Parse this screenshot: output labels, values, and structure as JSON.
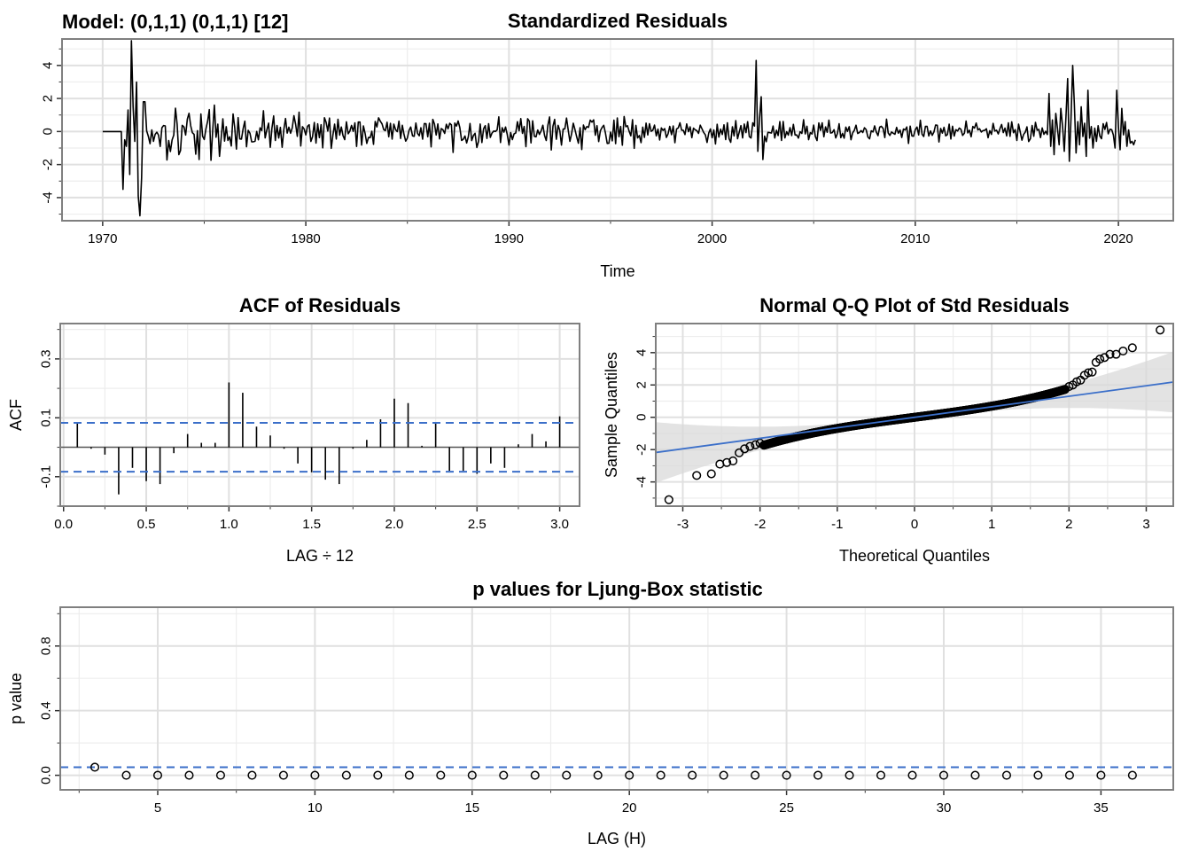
{
  "model_label": "Model: (0,1,1) (0,1,1) [12]",
  "chart_data": [
    {
      "id": "std-residuals",
      "type": "line",
      "title": "Standardized Residuals",
      "xlabel": "Time",
      "ylabel": "",
      "xlim": [
        1968,
        2022.7
      ],
      "ylim": [
        -5.4,
        5.6
      ],
      "xticks": [
        1970,
        1980,
        1990,
        2000,
        2010,
        2020
      ],
      "xtick_labels": [
        "1970",
        "1980",
        "1990",
        "2000",
        "2010",
        "2020"
      ],
      "yticks": [
        -4,
        -2,
        0,
        2,
        4
      ],
      "ytick_labels": [
        "-4",
        "-2",
        "0",
        "2",
        "4"
      ],
      "grid": true,
      "series": [
        {
          "color": "#000000",
          "segments": [
            {
              "start": 1970.0,
              "step": 0.0833333,
              "amp": 0.0,
              "seed": 1,
              "values": [
                0,
                0,
                0,
                0,
                0,
                0,
                0,
                0,
                0,
                0,
                0,
                0
              ]
            },
            {
              "start": 1971.0,
              "step": 0.0833333,
              "amp": 0.0,
              "seed": 2,
              "values": [
                -3.5,
                -0.5,
                -0.9,
                1.3,
                -2.6,
                5.5,
                1.5,
                -0.6,
                3.0,
                -3.9,
                -5.1,
                -2.8,
                1.8
              ]
            },
            {
              "start": 1972.0833,
              "step": 0.0833333,
              "amp": 1.6,
              "seed": 11,
              "values": [
                1.8
              ]
            },
            {
              "start": 1972.1667,
              "step": 0.0833333,
              "amp": 1.6,
              "seed": 17,
              "count": 44
            },
            {
              "start": 1975.8333,
              "step": 0.0833333,
              "amp": 1.1,
              "seed": 23,
              "count": 48
            },
            {
              "start": 1979.8333,
              "step": 0.0833333,
              "amp": 0.8,
              "seed": 29,
              "count": 200
            },
            {
              "start": 1996.5,
              "step": 0.0833333,
              "amp": 0.55,
              "seed": 31,
              "count": 68
            },
            {
              "start": 2002.1667,
              "step": 0.0833333,
              "amp": 0.0,
              "seed": 3,
              "values": [
                4.3,
                -1.2,
                0.8,
                2.1,
                -1.7
              ]
            },
            {
              "start": 2002.5833,
              "step": 0.0833333,
              "amp": 0.55,
              "seed": 37,
              "count": 168
            },
            {
              "start": 2016.5833,
              "step": 0.0833333,
              "amp": 0.0,
              "seed": 4,
              "values": [
                2.3,
                -0.9,
                0.7,
                -1.4,
                1.1,
                0.2,
                -0.8,
                1.4,
                0.3,
                -1.2,
                0.9,
                3.2,
                -1.8,
                0.8,
                4.0,
                1.6,
                -1.3,
                0.6,
                -0.8,
                1.5,
                -0.3,
                0.5,
                -1.5,
                2.5,
                -0.4,
                0.3,
                -1.0,
                0.2,
                -0.6
              ]
            },
            {
              "start": 2019.0,
              "step": 0.0833333,
              "amp": 0.5,
              "seed": 41,
              "count": 10
            },
            {
              "start": 2019.8333,
              "step": 0.0833333,
              "amp": 0.0,
              "seed": 5,
              "values": [
                -1.0,
                2.5,
                0.3,
                -1.1,
                1.4,
                -0.2,
                0.6,
                -0.9,
                0.1,
                -0.7,
                -0.6,
                -0.8,
                -0.5
              ]
            }
          ]
        }
      ]
    },
    {
      "id": "acf-residuals",
      "type": "bar",
      "title": "ACF of Residuals",
      "xlabel": "LAG ÷ 12",
      "ylabel": "ACF",
      "xlim": [
        -0.02,
        3.12
      ],
      "ylim": [
        -0.2,
        0.42
      ],
      "xticks": [
        0.0,
        0.5,
        1.0,
        1.5,
        2.0,
        2.5,
        3.0
      ],
      "xtick_labels": [
        "0.0",
        "0.5",
        "1.0",
        "1.5",
        "2.0",
        "2.5",
        "3.0"
      ],
      "yticks": [
        -0.1,
        0.1,
        0.3
      ],
      "ytick_labels": [
        "-0.1",
        "0.1",
        "0.3"
      ],
      "grid": true,
      "confidence_bounds": [
        0.083,
        -0.083
      ],
      "lags": [
        0.0833,
        0.1667,
        0.25,
        0.3333,
        0.4167,
        0.5,
        0.5833,
        0.6667,
        0.75,
        0.8333,
        0.9167,
        1.0,
        1.0833,
        1.1667,
        1.25,
        1.3333,
        1.4167,
        1.5,
        1.5833,
        1.6667,
        1.75,
        1.8333,
        1.9167,
        2.0,
        2.0833,
        2.1667,
        2.25,
        2.3333,
        2.4167,
        2.5,
        2.5833,
        2.6667,
        2.75,
        2.8333,
        2.9167,
        3.0
      ],
      "values": [
        0.08,
        -0.005,
        -0.025,
        -0.16,
        -0.07,
        -0.115,
        -0.125,
        -0.02,
        0.045,
        0.015,
        0.015,
        0.22,
        0.185,
        0.07,
        0.04,
        -0.005,
        -0.055,
        -0.085,
        -0.11,
        -0.125,
        -0.005,
        0.025,
        0.095,
        0.165,
        0.15,
        0.005,
        0.08,
        -0.08,
        -0.08,
        -0.09,
        -0.055,
        -0.07,
        0.01,
        0.045,
        0.02,
        0.105
      ]
    },
    {
      "id": "qq-plot",
      "type": "scatter",
      "title": "Normal Q-Q Plot of Std Residuals",
      "xlabel": "Theoretical Quantiles",
      "ylabel": "Sample Quantiles",
      "xlim": [
        -3.35,
        3.35
      ],
      "ylim": [
        -5.5,
        5.8
      ],
      "xticks": [
        -3,
        -2,
        -1,
        0,
        1,
        2,
        3
      ],
      "xtick_labels": [
        "-3",
        "-2",
        "-1",
        "0",
        "1",
        "2",
        "3"
      ],
      "yticks": [
        -4,
        -2,
        0,
        2,
        4
      ],
      "ytick_labels": [
        "-4",
        "-2",
        "0",
        "2",
        "4"
      ],
      "grid": true,
      "reference_line": {
        "intercept": 0.0,
        "slope": 0.65,
        "color": "#3b6fc9"
      },
      "band": {
        "base": 0.08,
        "growth": 0.16,
        "color": "#d9d9d9"
      },
      "bulk": {
        "n": 600,
        "x_range": [
          -1.95,
          1.95
        ],
        "y_at_x0": 0.0,
        "slope_center": 0.62,
        "cubic": 0.07
      },
      "tail_points": {
        "x": [
          -3.18,
          -2.82,
          -2.63,
          -2.52,
          -2.43,
          -2.35,
          -2.27,
          -2.2,
          -2.13,
          -2.06,
          -2.0,
          2.0,
          2.05,
          2.1,
          2.15,
          2.2,
          2.25,
          2.3,
          2.35,
          2.4,
          2.46,
          2.53,
          2.61,
          2.7,
          2.82,
          3.18
        ],
        "y": [
          -5.1,
          -3.6,
          -3.5,
          -2.9,
          -2.8,
          -2.7,
          -2.2,
          -1.95,
          -1.8,
          -1.7,
          -1.6,
          1.9,
          2.0,
          2.2,
          2.3,
          2.6,
          2.75,
          2.8,
          3.4,
          3.6,
          3.7,
          3.9,
          3.9,
          4.1,
          4.3,
          5.4
        ]
      }
    },
    {
      "id": "ljung-box",
      "type": "scatter",
      "title": "p values for Ljung-Box statistic",
      "xlabel": "LAG (H)",
      "ylabel": "p value",
      "xlim": [
        1.9,
        37.3
      ],
      "ylim": [
        -0.09,
        1.04
      ],
      "xticks": [
        5,
        10,
        15,
        20,
        25,
        30,
        35
      ],
      "xtick_labels": [
        "5",
        "10",
        "15",
        "20",
        "25",
        "30",
        "35"
      ],
      "yticks": [
        0.0,
        0.4,
        0.8
      ],
      "ytick_labels": [
        "0.0",
        "0.4",
        "0.8"
      ],
      "grid": true,
      "significance_level": 0.05,
      "x": [
        3,
        4,
        5,
        6,
        7,
        8,
        9,
        10,
        11,
        12,
        13,
        14,
        15,
        16,
        17,
        18,
        19,
        20,
        21,
        22,
        23,
        24,
        25,
        26,
        27,
        28,
        29,
        30,
        31,
        32,
        33,
        34,
        35,
        36
      ],
      "y": [
        0.05,
        0,
        0,
        0,
        0,
        0,
        0,
        0,
        0,
        0,
        0,
        0,
        0,
        0,
        0,
        0,
        0,
        0,
        0,
        0,
        0,
        0,
        0,
        0,
        0,
        0,
        0,
        0,
        0,
        0,
        0,
        0,
        0,
        0
      ]
    }
  ]
}
